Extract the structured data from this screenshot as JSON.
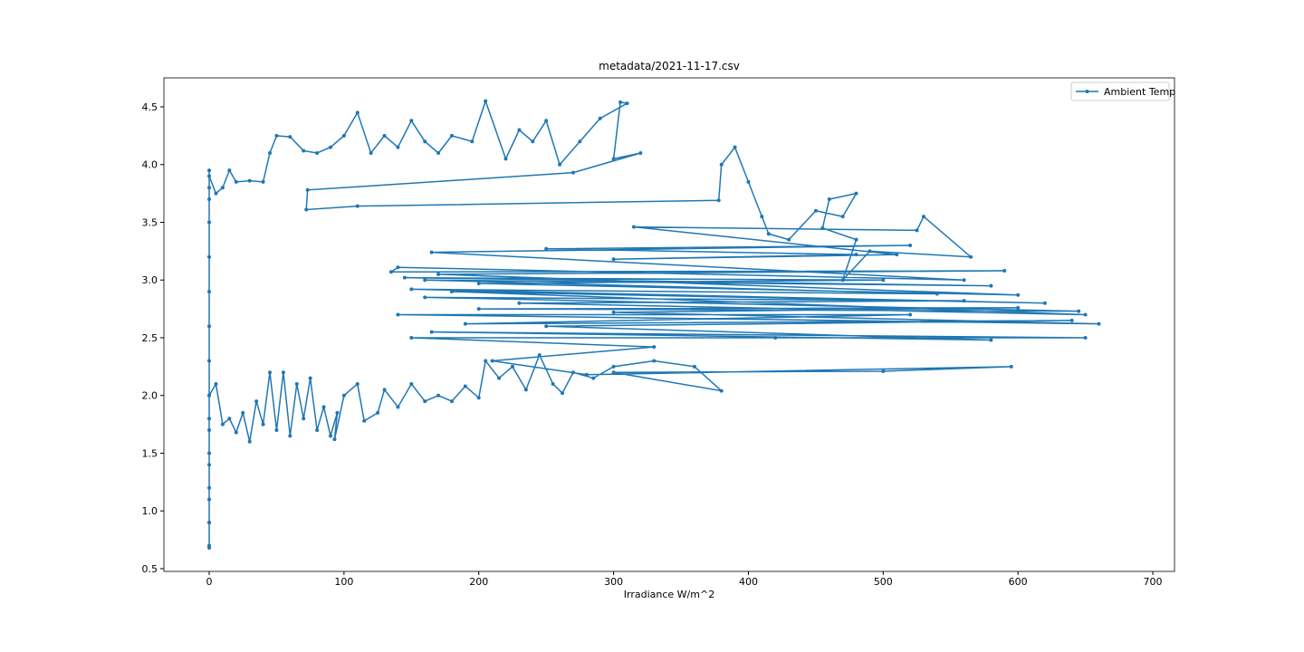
{
  "chart_data": {
    "type": "line",
    "title": "metadata/2021-11-17.csv",
    "x_label": "Irradiance W/m^2",
    "legend": "upper right",
    "x": [
      0,
      0,
      0,
      0,
      0,
      0,
      0,
      0,
      0,
      0,
      0,
      0,
      0,
      0,
      0,
      0,
      0,
      0,
      0,
      5,
      10,
      15,
      20,
      25,
      30,
      35,
      40,
      45,
      50,
      55,
      60,
      65,
      70,
      75,
      80,
      85,
      90,
      95,
      93,
      100,
      110,
      115,
      125,
      130,
      140,
      150,
      160,
      170,
      180,
      190,
      200,
      205,
      215,
      225,
      235,
      245,
      255,
      262,
      270,
      285,
      300,
      330,
      360,
      380,
      300,
      500,
      595,
      280,
      210,
      330,
      150,
      420,
      650,
      165,
      580,
      250,
      640,
      190,
      520,
      140,
      660,
      300,
      600,
      200,
      645,
      160,
      560,
      230,
      650,
      180,
      620,
      150,
      540,
      160,
      580,
      145,
      500,
      200,
      600,
      170,
      590,
      135,
      140,
      560,
      165,
      520,
      250,
      480,
      300,
      510,
      315,
      525,
      530,
      565,
      490,
      470,
      480,
      455,
      460,
      480,
      470,
      450,
      430,
      415,
      410,
      400,
      390,
      380,
      378,
      110,
      72,
      73,
      270,
      320,
      300,
      305,
      310,
      290,
      275,
      260,
      250,
      240,
      230,
      220,
      205,
      195,
      180,
      170,
      160,
      150,
      140,
      130,
      120,
      110,
      100,
      90,
      80,
      70,
      60,
      50,
      45,
      40,
      30,
      20,
      15,
      10,
      5,
      0,
      0
    ],
    "series": [
      {
        "name": "Ambient Temp",
        "color": "#1f77b4",
        "values": [
          3.95,
          3.8,
          3.5,
          3.2,
          2.9,
          2.6,
          2.3,
          2.0,
          1.7,
          1.4,
          1.1,
          0.9,
          0.7,
          0.68,
          0.9,
          1.2,
          1.5,
          1.8,
          2.0,
          2.1,
          1.75,
          1.8,
          1.68,
          1.85,
          1.6,
          1.95,
          1.75,
          2.2,
          1.7,
          2.2,
          1.65,
          2.1,
          1.8,
          2.15,
          1.7,
          1.9,
          1.65,
          1.85,
          1.62,
          2.0,
          2.1,
          1.78,
          1.85,
          2.05,
          1.9,
          2.1,
          1.95,
          2.0,
          1.95,
          2.08,
          1.98,
          2.3,
          2.15,
          2.25,
          2.05,
          2.35,
          2.1,
          2.02,
          2.2,
          2.15,
          2.25,
          2.3,
          2.25,
          2.04,
          2.2,
          2.21,
          2.25,
          2.18,
          2.3,
          2.42,
          2.5,
          2.5,
          2.5,
          2.55,
          2.48,
          2.6,
          2.65,
          2.62,
          2.7,
          2.7,
          2.62,
          2.72,
          2.76,
          2.75,
          2.73,
          2.85,
          2.82,
          2.8,
          2.7,
          2.9,
          2.8,
          2.92,
          2.88,
          3.0,
          2.95,
          3.02,
          3.0,
          2.97,
          2.87,
          3.05,
          3.08,
          3.07,
          3.11,
          3.0,
          3.24,
          3.3,
          3.27,
          3.22,
          3.18,
          3.22,
          3.46,
          3.43,
          3.55,
          3.2,
          3.25,
          3.0,
          3.35,
          3.45,
          3.7,
          3.75,
          3.55,
          3.6,
          3.35,
          3.4,
          3.55,
          3.85,
          4.15,
          4.0,
          3.69,
          3.64,
          3.61,
          3.78,
          3.93,
          4.1,
          4.05,
          4.54,
          4.53,
          4.4,
          4.2,
          4.0,
          4.38,
          4.2,
          4.3,
          4.05,
          4.55,
          4.2,
          4.25,
          4.1,
          4.2,
          4.38,
          4.15,
          4.25,
          4.1,
          4.45,
          4.25,
          4.15,
          4.1,
          4.12,
          4.24,
          4.25,
          4.1,
          3.85,
          3.86,
          3.85,
          3.95,
          3.8,
          3.75,
          3.9,
          3.7
        ]
      }
    ],
    "xlim": [
      -33.6,
      716.1
    ],
    "ylim": [
      0.476,
      4.751
    ],
    "xticks": [
      0,
      100,
      200,
      300,
      400,
      500,
      600,
      700
    ],
    "yticks": [
      0.5,
      {
        "value": 1,
        "label": "1.0"
      },
      1.5,
      {
        "value": 2,
        "label": "2.0"
      },
      2.5,
      {
        "value": 3,
        "label": "3.0"
      },
      3.5,
      {
        "value": 4,
        "label": "4.0"
      },
      4.5
    ]
  }
}
